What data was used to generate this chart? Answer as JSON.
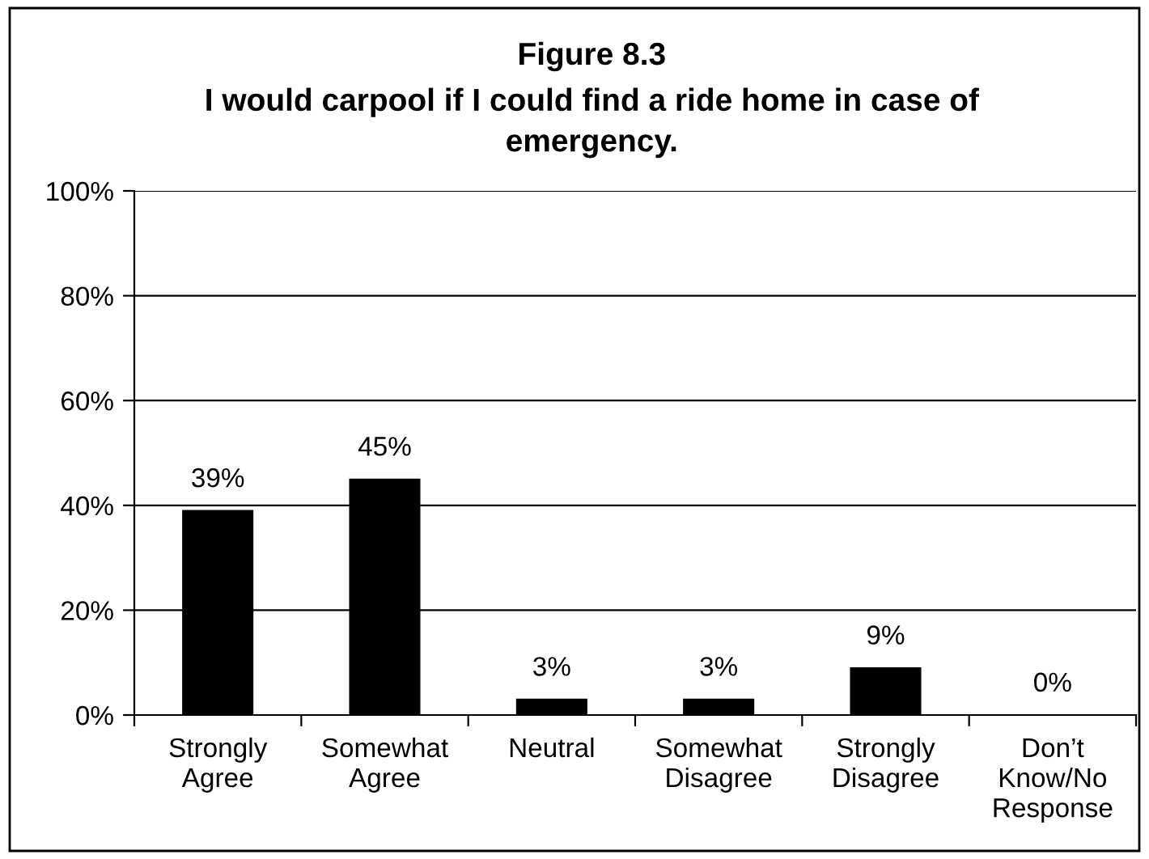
{
  "chart_data": {
    "type": "bar",
    "title": "Figure 8.3",
    "subtitle": "I would carpool if I could find a ride home in case of\nemergency.",
    "categories": [
      "Strongly\nAgree",
      "Somewhat\nAgree",
      "Neutral",
      "Somewhat\nDisagree",
      "Strongly\nDisagree",
      "Don’t\nKnow/No\nResponse"
    ],
    "values": [
      39,
      45,
      3,
      3,
      9,
      0
    ],
    "value_labels": [
      "39%",
      "45%",
      "3%",
      "3%",
      "9%",
      "0%"
    ],
    "color": "#000000",
    "ylim": [
      0,
      100
    ],
    "yticks": [
      {
        "value": 0,
        "label": "0%"
      },
      {
        "value": 20,
        "label": "20%"
      },
      {
        "value": 40,
        "label": "40%"
      },
      {
        "value": 60,
        "label": "60%"
      },
      {
        "value": 80,
        "label": "80%"
      },
      {
        "value": 100,
        "label": "100%"
      }
    ],
    "grid": "y"
  }
}
